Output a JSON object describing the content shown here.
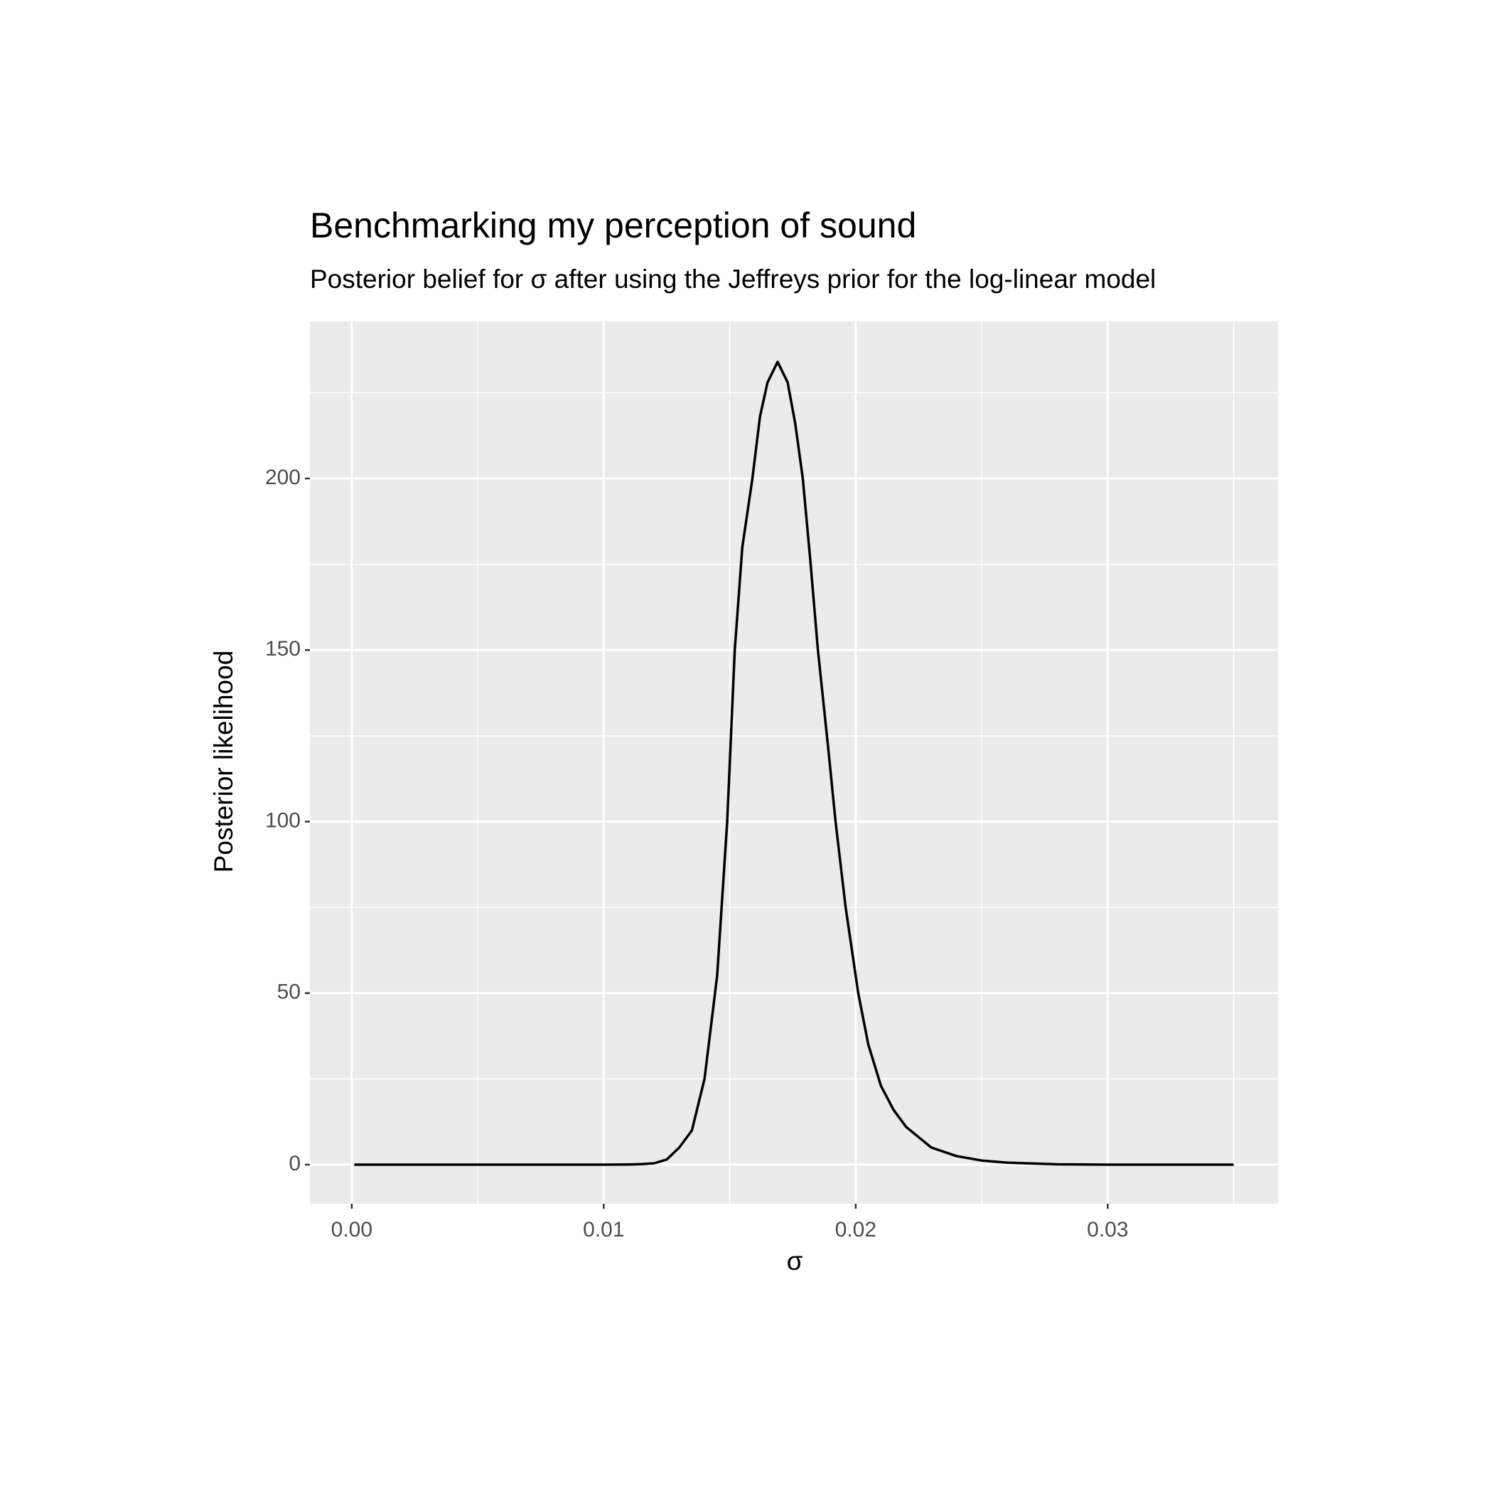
{
  "chart_data": {
    "type": "line",
    "title": "Benchmarking my perception of sound",
    "subtitle": "Posterior belief for σ after using the Jeffreys prior for the log-linear model",
    "x_label": "σ",
    "y_label": "Posterior likelihood",
    "x": [
      0.0001,
      0.005,
      0.01,
      0.011,
      0.0115,
      0.012,
      0.0125,
      0.013,
      0.0135,
      0.014,
      0.0145,
      0.0149,
      0.0152,
      0.0155,
      0.0159,
      0.0162,
      0.0165,
      0.0169,
      0.0173,
      0.0176,
      0.0179,
      0.0182,
      0.0185,
      0.0189,
      0.0192,
      0.0196,
      0.0201,
      0.0205,
      0.021,
      0.0215,
      0.022,
      0.023,
      0.024,
      0.025,
      0.026,
      0.028,
      0.03,
      0.035
    ],
    "series": [
      {
        "name": "posterior",
        "color": "#000000",
        "values": [
          0,
          0,
          0,
          0.05,
          0.15,
          0.4,
          1.5,
          5,
          10,
          25,
          55,
          100,
          150,
          180,
          200,
          218,
          228,
          234,
          228,
          216,
          200,
          176,
          150,
          122,
          100,
          75,
          50,
          35,
          23,
          16,
          11,
          5,
          2.5,
          1.2,
          0.6,
          0.1,
          0,
          0
        ]
      }
    ],
    "xlim": [
      -0.00166,
      0.03676
    ],
    "ylim": [
      -11.4,
      245.8
    ],
    "xticks": [
      {
        "value": 0,
        "label": "0.00"
      },
      0.01,
      0.02,
      0.03
    ],
    "yticks": [
      0,
      50,
      100,
      150,
      200
    ],
    "x_minor_grid": [
      0.005,
      0.015,
      0.025,
      0.035
    ],
    "y_minor_grid": [
      25,
      75,
      125,
      175,
      225
    ],
    "grid": true
  }
}
